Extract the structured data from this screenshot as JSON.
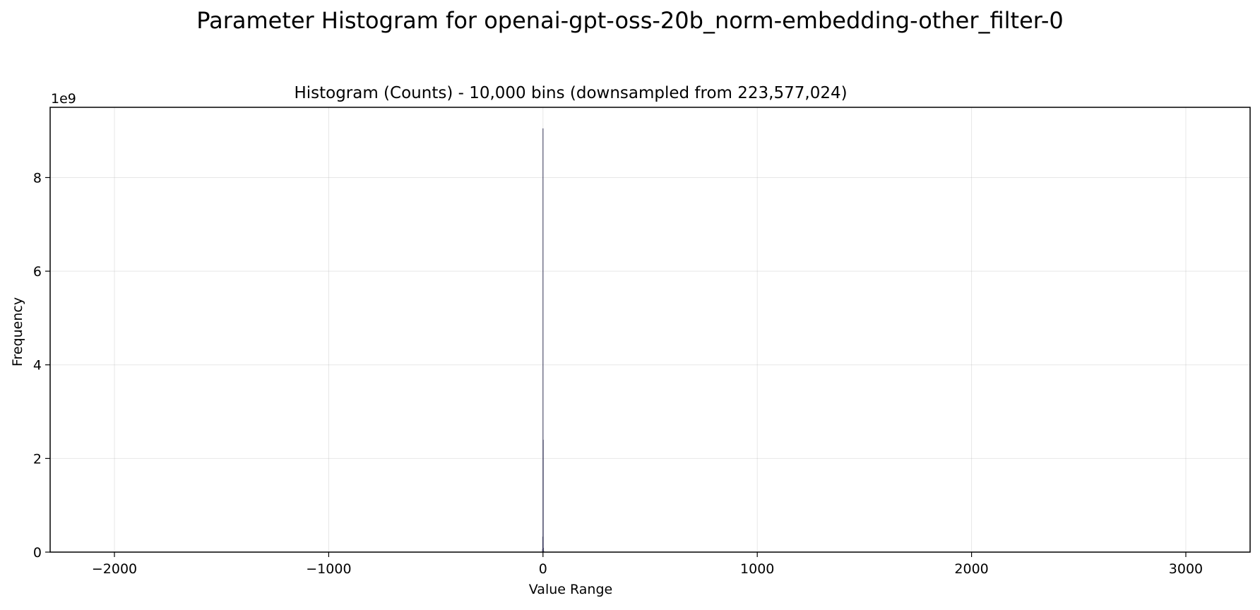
{
  "chart_data": {
    "type": "bar",
    "title": "Parameter Histogram for openai-gpt-oss-20b_norm-embedding-other_filter-0",
    "subtitle": "Histogram (Counts) - 10,000 bins (downsampled from 223,577,024)",
    "xlabel": "Value Range",
    "ylabel": "Frequency",
    "y_offset_label": "1e9",
    "xlim": [
      -2300,
      3300
    ],
    "ylim": [
      0,
      9500000000
    ],
    "x_ticks": [
      -2000,
      -1000,
      0,
      1000,
      2000,
      3000
    ],
    "x_tick_labels": [
      "−2000",
      "−1000",
      "0",
      "1000",
      "2000",
      "3000"
    ],
    "y_ticks": [
      0,
      2000000000,
      4000000000,
      6000000000,
      8000000000
    ],
    "y_tick_labels": [
      "0",
      "2",
      "4",
      "6",
      "8"
    ],
    "grid": true,
    "bar_color": "#3a3a5c",
    "bars": [
      {
        "x": -2,
        "value": 60000000
      },
      {
        "x": -1,
        "value": 330000000
      },
      {
        "x": 0,
        "value": 9050000000
      },
      {
        "x": 1,
        "value": 2400000000
      },
      {
        "x": 2,
        "value": 90000000
      },
      {
        "x": 3,
        "value": 30000000
      }
    ]
  }
}
